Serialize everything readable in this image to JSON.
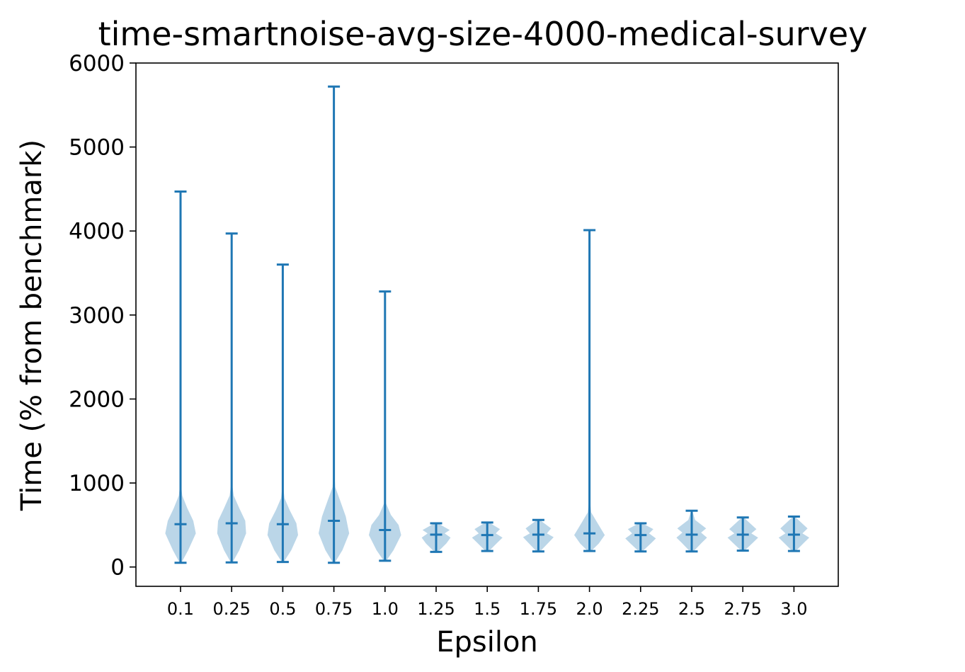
{
  "chart_data": {
    "type": "violin",
    "title": "time-smartnoise-avg-size-4000-medical-survey",
    "xlabel": "Epsilon",
    "ylabel": "Time (% from benchmark)",
    "ylim": [
      -230,
      6000
    ],
    "yticks": [
      0,
      1000,
      2000,
      3000,
      4000,
      5000,
      6000
    ],
    "categories": [
      "0.1",
      "0.25",
      "0.5",
      "0.75",
      "1.0",
      "1.25",
      "1.5",
      "1.75",
      "2.0",
      "2.25",
      "2.5",
      "2.75",
      "3.0"
    ],
    "series": [
      {
        "min": [
          50,
          55,
          60,
          50,
          75,
          180,
          190,
          185,
          190,
          185,
          185,
          195,
          190
        ],
        "mean": [
          510,
          520,
          510,
          550,
          440,
          385,
          380,
          385,
          400,
          380,
          385,
          385,
          385
        ],
        "max": [
          4470,
          3970,
          3600,
          5720,
          3280,
          520,
          530,
          560,
          4010,
          520,
          670,
          590,
          600
        ],
        "kde_half_width": [
          [
            [
              50,
              0.05
            ],
            [
              200,
              0.45
            ],
            [
              400,
              0.9
            ],
            [
              550,
              0.75
            ],
            [
              700,
              0.4
            ],
            [
              850,
              0.1
            ],
            [
              1000,
              0.02
            ]
          ],
          [
            [
              55,
              0.05
            ],
            [
              200,
              0.45
            ],
            [
              400,
              0.85
            ],
            [
              550,
              0.8
            ],
            [
              700,
              0.45
            ],
            [
              850,
              0.12
            ],
            [
              1000,
              0.02
            ]
          ],
          [
            [
              60,
              0.06
            ],
            [
              200,
              0.5
            ],
            [
              380,
              0.9
            ],
            [
              520,
              0.8
            ],
            [
              680,
              0.4
            ],
            [
              820,
              0.1
            ],
            [
              960,
              0.02
            ]
          ],
          [
            [
              50,
              0.05
            ],
            [
              200,
              0.5
            ],
            [
              400,
              0.9
            ],
            [
              600,
              0.7
            ],
            [
              800,
              0.35
            ],
            [
              950,
              0.08
            ],
            [
              1150,
              0.02
            ]
          ],
          [
            [
              75,
              0.08
            ],
            [
              200,
              0.5
            ],
            [
              380,
              0.95
            ],
            [
              500,
              0.8
            ],
            [
              620,
              0.35
            ],
            [
              760,
              0.05
            ]
          ],
          [
            [
              180,
              0.1
            ],
            [
              280,
              0.6
            ],
            [
              350,
              0.85
            ],
            [
              400,
              0.5
            ],
            [
              440,
              0.8
            ],
            [
              520,
              0.1
            ]
          ],
          [
            [
              190,
              0.1
            ],
            [
              290,
              0.6
            ],
            [
              350,
              0.9
            ],
            [
              400,
              0.5
            ],
            [
              450,
              0.75
            ],
            [
              530,
              0.1
            ]
          ],
          [
            [
              185,
              0.1
            ],
            [
              290,
              0.6
            ],
            [
              355,
              0.9
            ],
            [
              400,
              0.5
            ],
            [
              460,
              0.75
            ],
            [
              560,
              0.08
            ]
          ],
          [
            [
              190,
              0.1
            ],
            [
              280,
              0.55
            ],
            [
              380,
              0.9
            ],
            [
              480,
              0.6
            ],
            [
              650,
              0.1
            ],
            [
              800,
              0.02
            ]
          ],
          [
            [
              185,
              0.1
            ],
            [
              280,
              0.6
            ],
            [
              340,
              0.9
            ],
            [
              400,
              0.5
            ],
            [
              450,
              0.75
            ],
            [
              520,
              0.1
            ]
          ],
          [
            [
              185,
              0.1
            ],
            [
              290,
              0.6
            ],
            [
              350,
              0.9
            ],
            [
              410,
              0.55
            ],
            [
              460,
              0.85
            ],
            [
              560,
              0.2
            ],
            [
              670,
              0.03
            ]
          ],
          [
            [
              195,
              0.1
            ],
            [
              290,
              0.6
            ],
            [
              350,
              0.9
            ],
            [
              400,
              0.5
            ],
            [
              450,
              0.8
            ],
            [
              590,
              0.05
            ]
          ],
          [
            [
              190,
              0.1
            ],
            [
              290,
              0.6
            ],
            [
              350,
              0.9
            ],
            [
              400,
              0.5
            ],
            [
              460,
              0.8
            ],
            [
              600,
              0.05
            ]
          ]
        ]
      }
    ],
    "colors": {
      "line": "#1f77b4",
      "body": "#1f77b4",
      "body_opacity": 0.3
    },
    "grid": false,
    "legend": "none"
  }
}
